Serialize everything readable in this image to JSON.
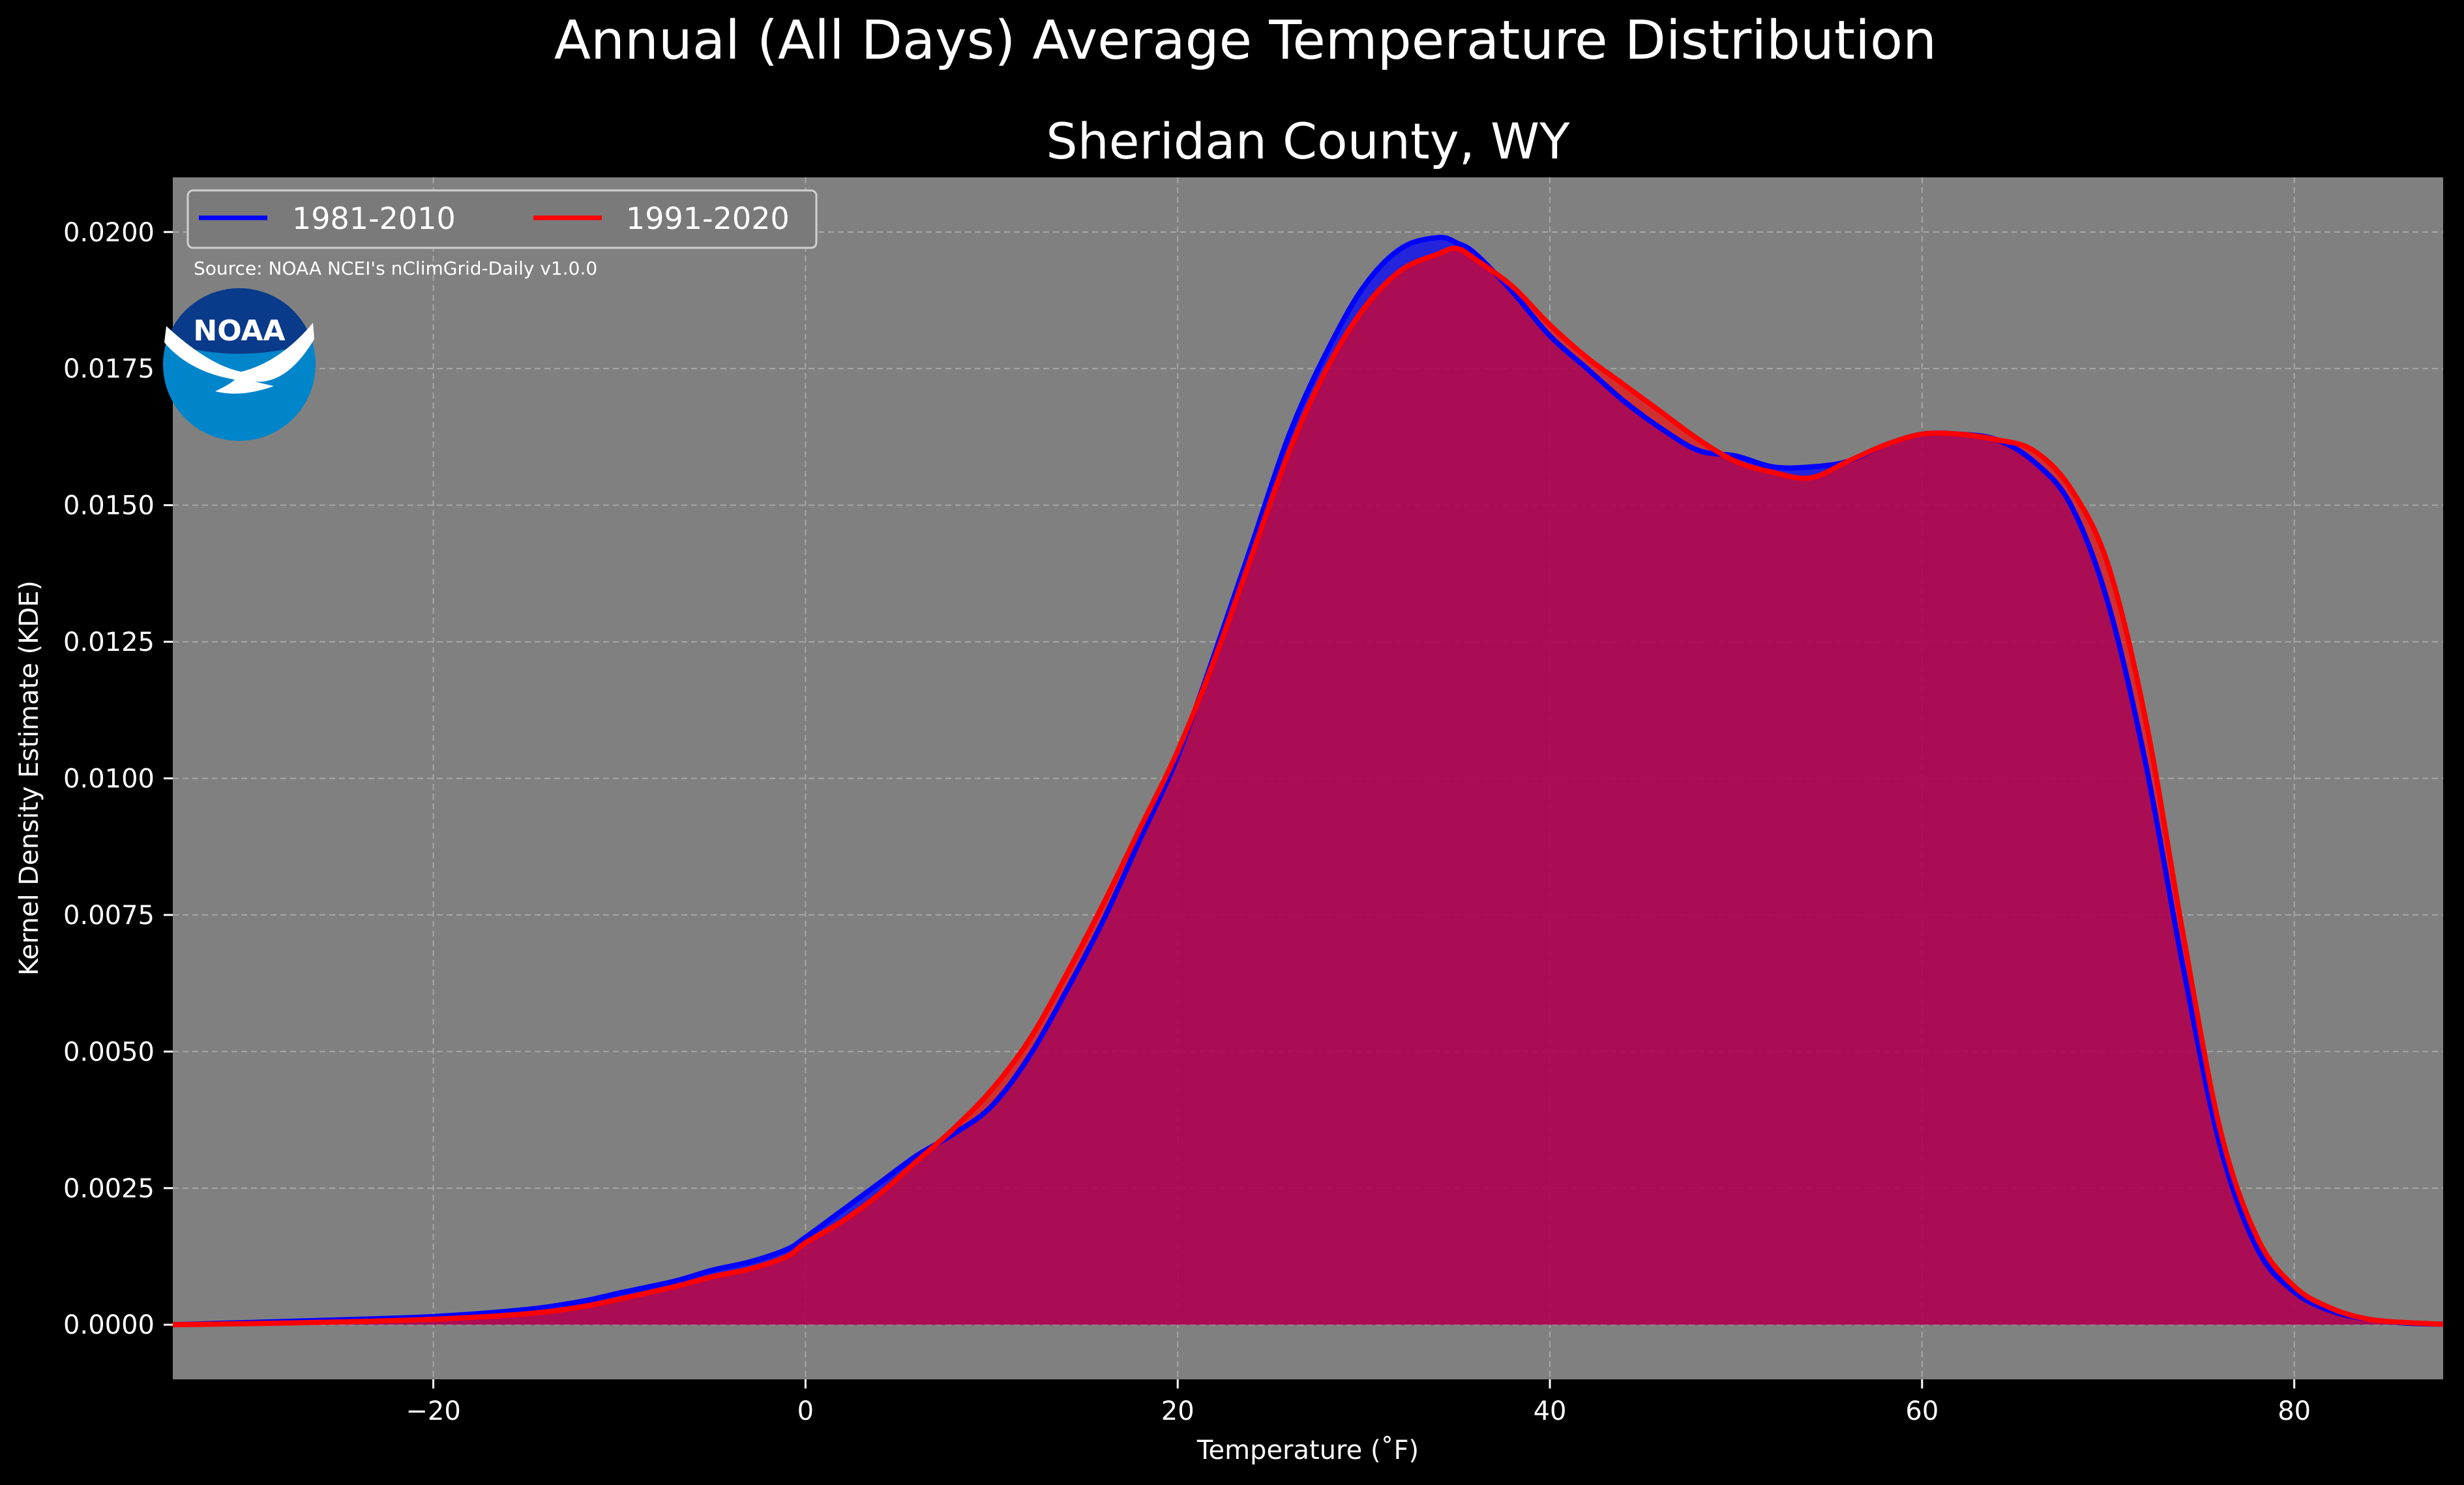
{
  "figure_title": "Annual (All Days) Average Temperature Distribution",
  "source_note": "Source: NOAA NCEI's nClimGrid-Daily v1.0.0",
  "logo": {
    "text": "NOAA",
    "outer_color": "#0085CA",
    "inner_color": "#003087"
  },
  "colors": {
    "background": "#000000",
    "plot_bg": "#808080",
    "grid": "#c8c8c8",
    "series_1981": "#0000ff",
    "series_1991": "#ff0000",
    "overlap_fill": "#9a1c5c"
  },
  "chart_data": {
    "type": "area",
    "title": "Sheridan County, WY",
    "xlabel": "Temperature ($^\\circ$F)",
    "xlabel_display": "Temperature (˚F)",
    "ylabel": "Kernel Density Estimate (KDE)",
    "xlim": [
      -34,
      88
    ],
    "ylim": [
      -0.001,
      0.021
    ],
    "x_ticks": [
      -20,
      0,
      20,
      40,
      60,
      80
    ],
    "x_tick_labels": [
      "−20",
      "0",
      "20",
      "40",
      "60",
      "80"
    ],
    "y_ticks": [
      0.0,
      0.0025,
      0.005,
      0.0075,
      0.01,
      0.0125,
      0.015,
      0.0175,
      0.02
    ],
    "y_tick_labels": [
      "0.0000",
      "0.0025",
      "0.0050",
      "0.0075",
      "0.0100",
      "0.0125",
      "0.0150",
      "0.0175",
      "0.0200"
    ],
    "grid": true,
    "legend_position": "top-left",
    "series": [
      {
        "name": "1981-2010",
        "color": "#0000ff",
        "x": [
          -34,
          -30,
          -25,
          -20,
          -15,
          -12,
          -10,
          -7,
          -5,
          -3,
          -1,
          0,
          2,
          4,
          6,
          8,
          10,
          12,
          14,
          16,
          18,
          20,
          22,
          24,
          26,
          28,
          30,
          32,
          34,
          35,
          36,
          38,
          40,
          42,
          44,
          46,
          48,
          50,
          52,
          54,
          56,
          58,
          60,
          62,
          64,
          66,
          68,
          70,
          72,
          74,
          76,
          78,
          80,
          82,
          84,
          86,
          88
        ],
        "y": [
          0.0,
          4e-05,
          9e-05,
          0.00015,
          0.00028,
          0.00043,
          0.00058,
          0.0008,
          0.001,
          0.00115,
          0.00138,
          0.0016,
          0.0021,
          0.0026,
          0.0031,
          0.0035,
          0.004,
          0.0049,
          0.0061,
          0.0074,
          0.0089,
          0.0104,
          0.0123,
          0.0143,
          0.0163,
          0.0178,
          0.019,
          0.0197,
          0.0199,
          0.0198,
          0.0196,
          0.0189,
          0.0181,
          0.0175,
          0.0169,
          0.0164,
          0.016,
          0.0159,
          0.0157,
          0.0157,
          0.0158,
          0.0161,
          0.0163,
          0.0163,
          0.0162,
          0.0158,
          0.015,
          0.0132,
          0.0103,
          0.0066,
          0.0033,
          0.0014,
          0.0006,
          0.00025,
          0.0001,
          3e-05,
          1e-05
        ]
      },
      {
        "name": "1991-2020",
        "color": "#ff0000",
        "x": [
          -34,
          -30,
          -25,
          -20,
          -15,
          -12,
          -10,
          -7,
          -5,
          -3,
          -1,
          0,
          2,
          4,
          6,
          8,
          10,
          12,
          14,
          16,
          18,
          20,
          22,
          24,
          26,
          28,
          30,
          32,
          34,
          35,
          36,
          38,
          40,
          42,
          44,
          46,
          48,
          50,
          52,
          54,
          56,
          58,
          60,
          62,
          64,
          66,
          68,
          70,
          72,
          74,
          76,
          78,
          80,
          82,
          84,
          86,
          88
        ],
        "y": [
          0.0,
          2e-05,
          5e-05,
          0.0001,
          0.0002,
          0.00033,
          0.00047,
          0.0007,
          0.00088,
          0.00102,
          0.00125,
          0.0015,
          0.0019,
          0.0024,
          0.003,
          0.0036,
          0.0043,
          0.0052,
          0.0064,
          0.0077,
          0.0091,
          0.0105,
          0.0122,
          0.0141,
          0.016,
          0.0175,
          0.0186,
          0.0193,
          0.0196,
          0.0197,
          0.0195,
          0.019,
          0.0183,
          0.0177,
          0.0172,
          0.0167,
          0.0162,
          0.0158,
          0.0156,
          0.0155,
          0.0158,
          0.0161,
          0.0163,
          0.0163,
          0.0162,
          0.016,
          0.0153,
          0.0139,
          0.0111,
          0.0072,
          0.0036,
          0.0016,
          0.0007,
          0.0003,
          0.0001,
          4e-05,
          1e-05
        ]
      }
    ]
  }
}
